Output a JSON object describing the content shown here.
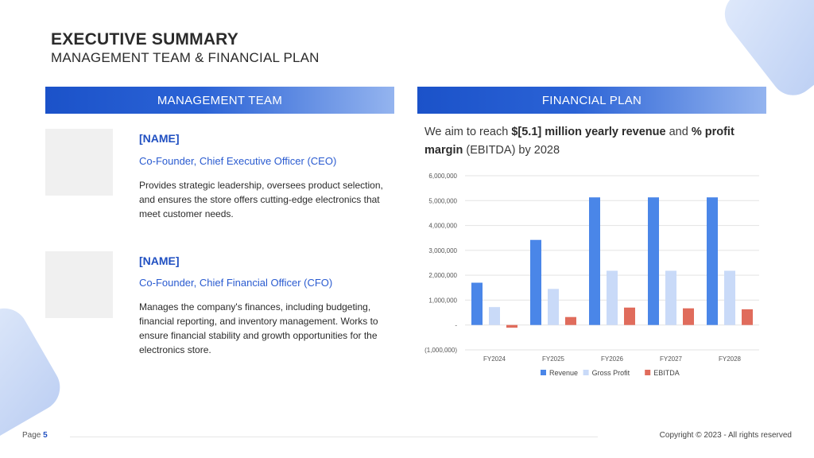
{
  "header": {
    "title": "EXECUTIVE SUMMARY",
    "subtitle": "MANAGEMENT TEAM & FINANCIAL PLAN"
  },
  "management": {
    "heading": "MANAGEMENT TEAM",
    "members": [
      {
        "name": "[NAME]",
        "role": "Co-Founder, Chief Executive Officer (CEO)",
        "description": "Provides strategic leadership, oversees product selection, and ensures the store offers cutting-edge electronics that meet customer needs."
      },
      {
        "name": "[NAME]",
        "role": "Co-Founder, Chief Financial Officer (CFO)",
        "description": "Manages the company's finances, including budgeting, financial reporting, and inventory management. Works to ensure financial stability and growth opportunities for the electronics store."
      }
    ]
  },
  "financial": {
    "heading": "FINANCIAL PLAN",
    "statement": {
      "pre": "We aim to reach ",
      "bold1": "$[5.1] million yearly revenue",
      "mid": " and ",
      "bold2": "% profit margin",
      "post": " (EBITDA) by 2028"
    }
  },
  "chart_data": {
    "type": "bar",
    "categories": [
      "FY2024",
      "FY2025",
      "FY2026",
      "FY2027",
      "FY2028"
    ],
    "series": [
      {
        "name": "Revenue",
        "values": [
          1700000,
          3420000,
          5130000,
          5130000,
          5130000
        ],
        "color": "#4a86e8"
      },
      {
        "name": "Gross Profit",
        "values": [
          720000,
          1450000,
          2180000,
          2180000,
          2180000
        ],
        "color": "#c9daf8"
      },
      {
        "name": "EBITDA",
        "values": [
          -110000,
          320000,
          700000,
          670000,
          630000
        ],
        "color": "#e06c5c"
      }
    ],
    "y_ticks": [
      "6,000,000",
      "5,000,000",
      "4,000,000",
      "3,000,000",
      "2,000,000",
      "1,000,000",
      "-",
      "(1,000,000)"
    ],
    "ylim": [
      -1000000,
      6000000
    ],
    "grid": true,
    "legend_position": "bottom"
  },
  "footer": {
    "page_label": "Page",
    "page_number": "5",
    "copyright": "Copyright © 2023 - All rights reserved"
  }
}
